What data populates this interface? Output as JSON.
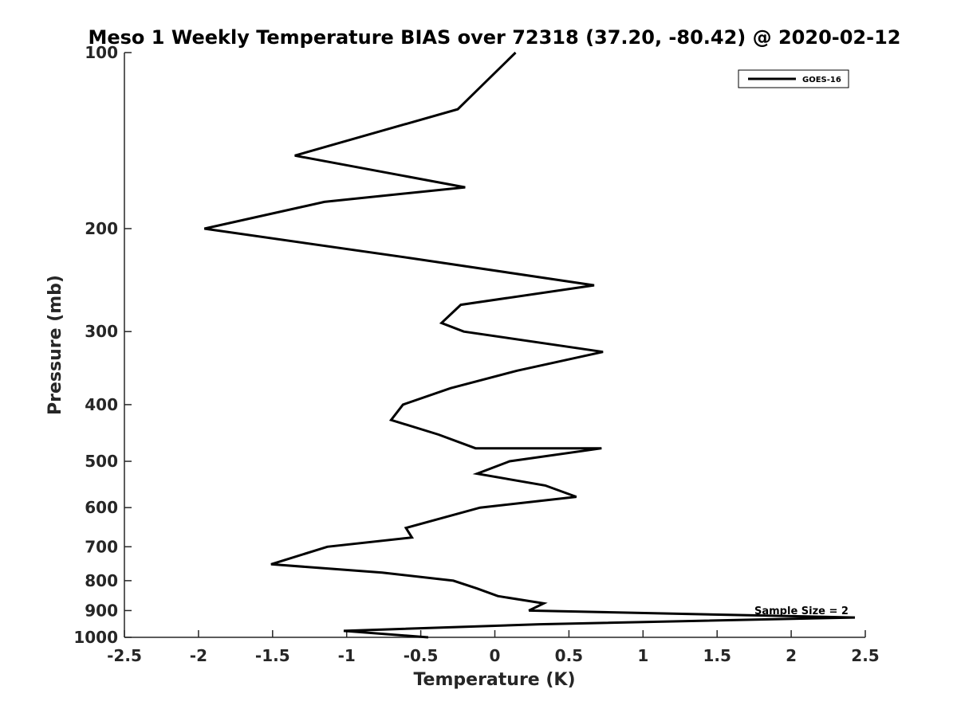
{
  "chart_data": {
    "type": "line",
    "title": "Meso 1 Weekly Temperature BIAS over 72318 (37.20, -80.42) @ 2020-02-12",
    "xlabel": "Temperature (K)",
    "ylabel": "Pressure (mb)",
    "xlim": [
      -2.5,
      2.5
    ],
    "ylim": [
      1000,
      100
    ],
    "y_scale": "log",
    "y_reversed": true,
    "xticks": [
      "-2.5",
      "-2",
      "-1.5",
      "-1",
      "-0.5",
      "0",
      "0.5",
      "1",
      "1.5",
      "2",
      "2.5"
    ],
    "yticks": [
      "100",
      "200",
      "300",
      "400",
      "500",
      "600",
      "700",
      "800",
      "900",
      "1000"
    ],
    "grid": false,
    "legend_position": "top-right",
    "annotation": "Sample Size = 2",
    "series": [
      {
        "name": "GOES-16",
        "color": "#000000",
        "x": [
          0.14,
          -0.25,
          -1.35,
          -0.2,
          -1.15,
          -1.96,
          -0.55,
          0.67,
          -0.23,
          -0.36,
          -0.21,
          0.73,
          0.15,
          -0.3,
          -0.62,
          -0.7,
          -0.38,
          -0.13,
          0.72,
          0.1,
          -0.12,
          0.34,
          0.55,
          -0.1,
          -0.6,
          -0.56,
          -1.13,
          -1.51,
          -0.76,
          -0.28,
          -0.12,
          0.02,
          0.33,
          0.23,
          2.43,
          0.3,
          -1.02,
          -0.45
        ],
        "y": [
          100,
          125,
          150,
          170,
          180,
          200,
          225,
          250,
          270,
          290,
          300,
          325,
          350,
          375,
          400,
          425,
          450,
          475,
          475,
          500,
          525,
          550,
          575,
          600,
          650,
          675,
          700,
          750,
          775,
          800,
          825,
          850,
          875,
          900,
          925,
          950,
          975,
          1000
        ]
      }
    ]
  }
}
